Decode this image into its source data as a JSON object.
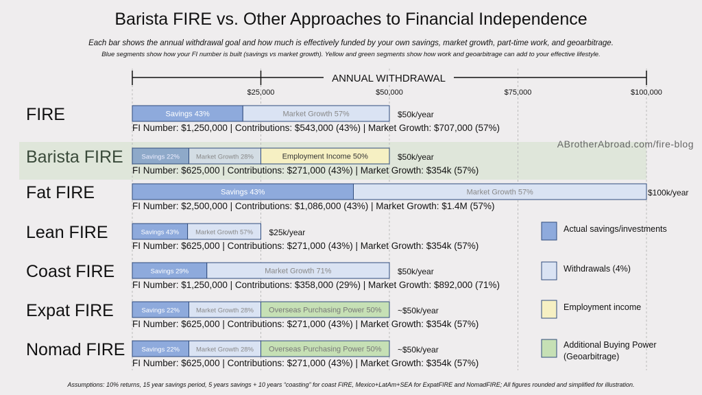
{
  "title": "Barista FIRE vs. Other Approaches to Financial Independence",
  "subtitle_1": "Each bar shows the annual withdrawal goal and how much is effectively funded by your own savings, market growth, part-time work, and geoarbitrage.",
  "subtitle_2": "Blue segments show how your FI number is built (savings vs market growth). Yellow and green segments show how work and geoarbitrage can add to your effective lifestyle.",
  "footnote": "Assumptions: 10% returns, 15 year savings period, 5 years savings + 10 years “coasting” for coast FIRE, Mexico+LatAm+SEA for ExpatFIRE and NomadFIRE; All figures rounded and simplified for illustration.",
  "watermark": "ABrotherAbroad.com/fire-blog",
  "colors": {
    "savings": "#8eaadc",
    "market_growth": "#dae3f3",
    "employment": "#f6f0c3",
    "geoarbitrage": "#c6e0b5",
    "border": "#2f4b7c",
    "highlight": "#dfe6da"
  },
  "chart_data": {
    "type": "bar",
    "orientation": "horizontal-stacked",
    "xlabel": "ANNUAL WITHDRAWAL",
    "xlim": [
      0,
      100000
    ],
    "x_ticks": [
      0,
      25000,
      50000,
      75000,
      100000
    ],
    "x_tick_labels": [
      "",
      "$25,000",
      "$50,000",
      "$75,000",
      "$100,000"
    ],
    "grid": "vertical dashed",
    "highlighted": "Barista FIRE",
    "rows": [
      {
        "name": "FIRE",
        "total_label": "$50k/year",
        "total": 50000,
        "segments": [
          {
            "type": "savings",
            "label": "Savings 43%",
            "value": 21500
          },
          {
            "type": "market_growth",
            "label": "Market Growth 57%",
            "value": 28500
          }
        ],
        "detail": "FI Number: $1,250,000 | Contributions: $543,000 (43%) | Market Growth: $707,000 (57%)"
      },
      {
        "name": "Barista FIRE",
        "total_label": "$50k/year",
        "total": 50000,
        "segments": [
          {
            "type": "savings",
            "label": "Savings 22%",
            "value": 11000
          },
          {
            "type": "market_growth",
            "label": "Market Growth 28%",
            "value": 14000
          },
          {
            "type": "employment",
            "label": "Employment Income 50%",
            "value": 25000
          }
        ],
        "detail": "FI Number: $625,000 | Contributions: $271,000 (43%) | Market Growth: $354k (57%)"
      },
      {
        "name": "Fat FIRE",
        "total_label": "$100k/year",
        "total": 100000,
        "segments": [
          {
            "type": "savings",
            "label": "Savings 43%",
            "value": 43000
          },
          {
            "type": "market_growth",
            "label": "Market Growth 57%",
            "value": 57000
          }
        ],
        "detail": "FI Number: $2,500,000 | Contributions: $1,086,000 (43%) | Market Growth: $1.4M (57%)"
      },
      {
        "name": "Lean FIRE",
        "total_label": "$25k/year",
        "total": 25000,
        "segments": [
          {
            "type": "savings",
            "label": "Savings 43%",
            "value": 10750
          },
          {
            "type": "market_growth",
            "label": "Market Growth 57%",
            "value": 14250
          }
        ],
        "detail": "FI Number: $625,000 | Contributions: $271,000 (43%) | Market Growth: $354k (57%)"
      },
      {
        "name": "Coast FIRE",
        "total_label": "$50k/year",
        "total": 50000,
        "segments": [
          {
            "type": "savings",
            "label": "Savings 29%",
            "value": 14500
          },
          {
            "type": "market_growth",
            "label": "Market Growth 71%",
            "value": 35500
          }
        ],
        "detail": "FI Number: $1,250,000 | Contributions: $358,000 (29%) | Market Growth: $892,000 (71%)"
      },
      {
        "name": "Expat FIRE",
        "total_label": "~$50k/year",
        "total": 50000,
        "segments": [
          {
            "type": "savings",
            "label": "Savings 22%",
            "value": 11000
          },
          {
            "type": "market_growth",
            "label": "Market Growth 28%",
            "value": 14000
          },
          {
            "type": "geoarbitrage",
            "label": "Overseas Purchasing Power 50%",
            "value": 25000
          }
        ],
        "detail": "FI Number: $625,000 | Contributions: $271,000 (43%) | Market Growth: $354k (57%)"
      },
      {
        "name": "Nomad FIRE",
        "total_label": "~$50k/year",
        "total": 50000,
        "segments": [
          {
            "type": "savings",
            "label": "Savings 22%",
            "value": 11000
          },
          {
            "type": "market_growth",
            "label": "Market Growth 28%",
            "value": 14000
          },
          {
            "type": "geoarbitrage",
            "label": "Overseas Purchasing Power 50%",
            "value": 25000
          }
        ],
        "detail": "FI Number: $625,000 | Contributions: $271,000 (43%) | Market Growth: $354k (57%)"
      }
    ],
    "legend": [
      {
        "type": "savings",
        "label": "Actual savings/investments"
      },
      {
        "type": "market_growth",
        "label": "Withdrawals (4%)"
      },
      {
        "type": "employment",
        "label": "Employment income"
      },
      {
        "type": "geoarbitrage",
        "label": "Additional Buying Power (Geoarbitrage)"
      }
    ],
    "legend_position": "right"
  }
}
